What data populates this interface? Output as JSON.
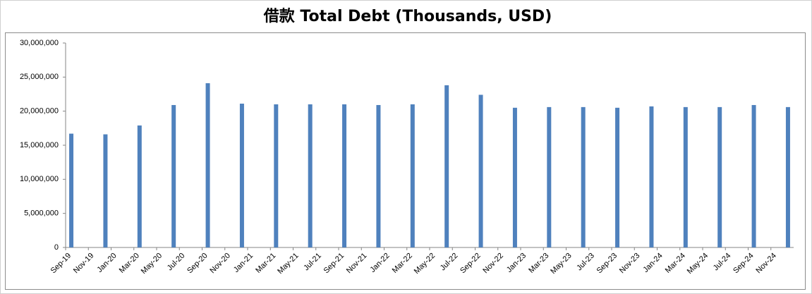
{
  "chart_data": {
    "type": "bar",
    "title": "借款 Total Debt (Thousands, USD)",
    "categories": [
      "Sep-19",
      null,
      "Nov-19",
      null,
      "Jan-20",
      null,
      "Mar-20",
      null,
      "May-20",
      null,
      "Jul-20",
      null,
      "Sep-20",
      null,
      "Nov-20",
      null,
      "Jan-21",
      null,
      "Mar-21",
      null,
      "May-21",
      null,
      "Jul-21",
      null,
      "Sep-21",
      null,
      "Nov-21",
      null,
      "Jan-22",
      null,
      "Mar-22",
      null,
      "May-22",
      null,
      "Jul-22",
      null,
      "Sep-22",
      null,
      "Nov-22",
      null,
      "Jan-23",
      null,
      "Mar-23",
      null,
      "May-23",
      null,
      "Jul-23",
      null,
      "Sep-23",
      null,
      "Nov-23",
      null,
      "Jan-24",
      null,
      "Mar-24",
      null,
      "May-24",
      null,
      "Jul-24",
      null,
      "Sep-24",
      null,
      "Nov-24",
      null
    ],
    "values": [
      16700000,
      null,
      null,
      16600000,
      null,
      null,
      17900000,
      null,
      null,
      20900000,
      null,
      null,
      24100000,
      null,
      null,
      21100000,
      null,
      null,
      21000000,
      null,
      null,
      21000000,
      null,
      null,
      21000000,
      null,
      null,
      20900000,
      null,
      null,
      21000000,
      null,
      null,
      23800000,
      null,
      null,
      22400000,
      null,
      null,
      20500000,
      null,
      null,
      20600000,
      null,
      null,
      20600000,
      null,
      null,
      20500000,
      null,
      null,
      20700000,
      null,
      null,
      20600000,
      null,
      null,
      20600000,
      null,
      null,
      20900000,
      null,
      null,
      20600000
    ],
    "color": "#4f81bd",
    "ylim": [
      0,
      30000000
    ],
    "yticks": [
      0,
      {
        "value": 5000000,
        "label": "5,000,000"
      },
      {
        "value": 10000000,
        "label": "10,000,000"
      },
      {
        "value": 15000000,
        "label": "15,000,000"
      },
      {
        "value": 20000000,
        "label": "20,000,000"
      },
      {
        "value": 25000000,
        "label": "25,000,000"
      },
      {
        "value": 30000000,
        "label": "30,000,000"
      }
    ],
    "grid": false
  }
}
